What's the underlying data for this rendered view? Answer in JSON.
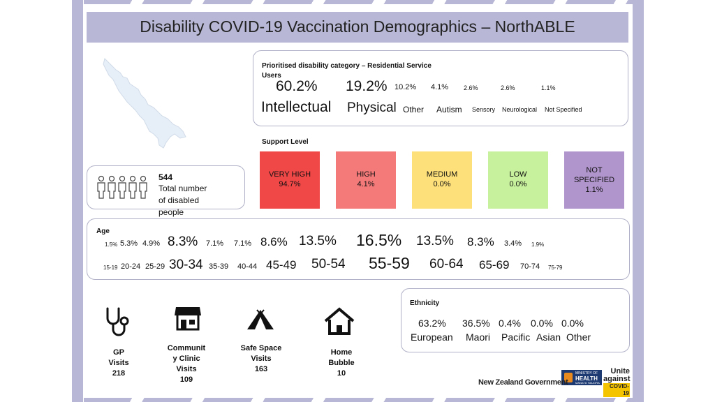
{
  "title": "Disability COVID-19 Vaccination Demographics – NorthABLE",
  "category": {
    "heading": "Prioritised disability category – Residential Service Users",
    "items": [
      {
        "pct": "60.2%",
        "label": "Intellectual"
      },
      {
        "pct": "19.2%",
        "label": "Physical"
      },
      {
        "pct": "10.2%",
        "label": "Other"
      },
      {
        "pct": "4.1%",
        "label": "Autism"
      },
      {
        "pct": "2.6%",
        "label": "Sensory"
      },
      {
        "pct": "2.6%",
        "label": "Neurological"
      },
      {
        "pct": "1.1%",
        "label": "Not Specified"
      }
    ]
  },
  "support": {
    "heading": "Support Level",
    "levels": [
      {
        "name": "VERY HIGH",
        "value": "94.7%",
        "color": "#f04747"
      },
      {
        "name": "HIGH",
        "value": "4.1%",
        "color": "#f47a7a"
      },
      {
        "name": "MEDIUM",
        "value": "0.0%",
        "color": "#fde07a"
      },
      {
        "name": "LOW",
        "value": "0.0%",
        "color": "#c7f19c"
      },
      {
        "name": "NOT SPECIFIED",
        "value": "1.1%",
        "color": "#b094cc"
      }
    ]
  },
  "total": {
    "count": "544",
    "line1": "Total number",
    "line2": "of disabled",
    "line3": "people",
    "icon": "people-group-icon"
  },
  "age": {
    "heading": "Age",
    "groups": [
      {
        "pct": "1.5%",
        "range": "15-19"
      },
      {
        "pct": "5.3%",
        "range": "20-24"
      },
      {
        "pct": "4.9%",
        "range": "25-29"
      },
      {
        "pct": "8.3%",
        "range": "30-34"
      },
      {
        "pct": "7.1%",
        "range": "35-39"
      },
      {
        "pct": "7.1%",
        "range": "40-44"
      },
      {
        "pct": "8.6%",
        "range": "45-49"
      },
      {
        "pct": "13.5%",
        "range": "50-54"
      },
      {
        "pct": "16.5%",
        "range": "55-59"
      },
      {
        "pct": "13.5%",
        "range": "60-64"
      },
      {
        "pct": "8.3%",
        "range": "65-69"
      },
      {
        "pct": "3.4%",
        "range": "70-74"
      },
      {
        "pct": "1.9%",
        "range": "75-79"
      }
    ]
  },
  "ethnicity": {
    "heading": "Ethnicity",
    "items": [
      {
        "pct": "63.2%",
        "label": "European"
      },
      {
        "pct": "36.5%",
        "label": "Maori"
      },
      {
        "pct": "0.4%",
        "label": "Pacific"
      },
      {
        "pct": "0.0%",
        "label": "Asian"
      },
      {
        "pct": "0.0%",
        "label": "Other"
      }
    ]
  },
  "visits": [
    {
      "l1": "GP",
      "l2": "Visits",
      "l3": "218",
      "icon": "stethoscope-icon"
    },
    {
      "l1": "Communit",
      "l2": "y Clinic",
      "l3": "Visits",
      "l4": "109",
      "icon": "shop-icon"
    },
    {
      "l1": "Safe Space",
      "l2": "Visits",
      "l3": "163",
      "icon": "tent-icon"
    },
    {
      "l1": "Home",
      "l2": "Bubble",
      "l3": "10",
      "icon": "house-icon"
    }
  ],
  "logos": {
    "ministry_l1": "MINISTRY OF",
    "ministry_l2": "HEALTH",
    "ministry_l3": "MANATŪ HAUORA",
    "nzgov": "New Zealand Government",
    "unite_l1": "Unite",
    "unite_l2": "against",
    "unite_l3": "COVID-19"
  }
}
